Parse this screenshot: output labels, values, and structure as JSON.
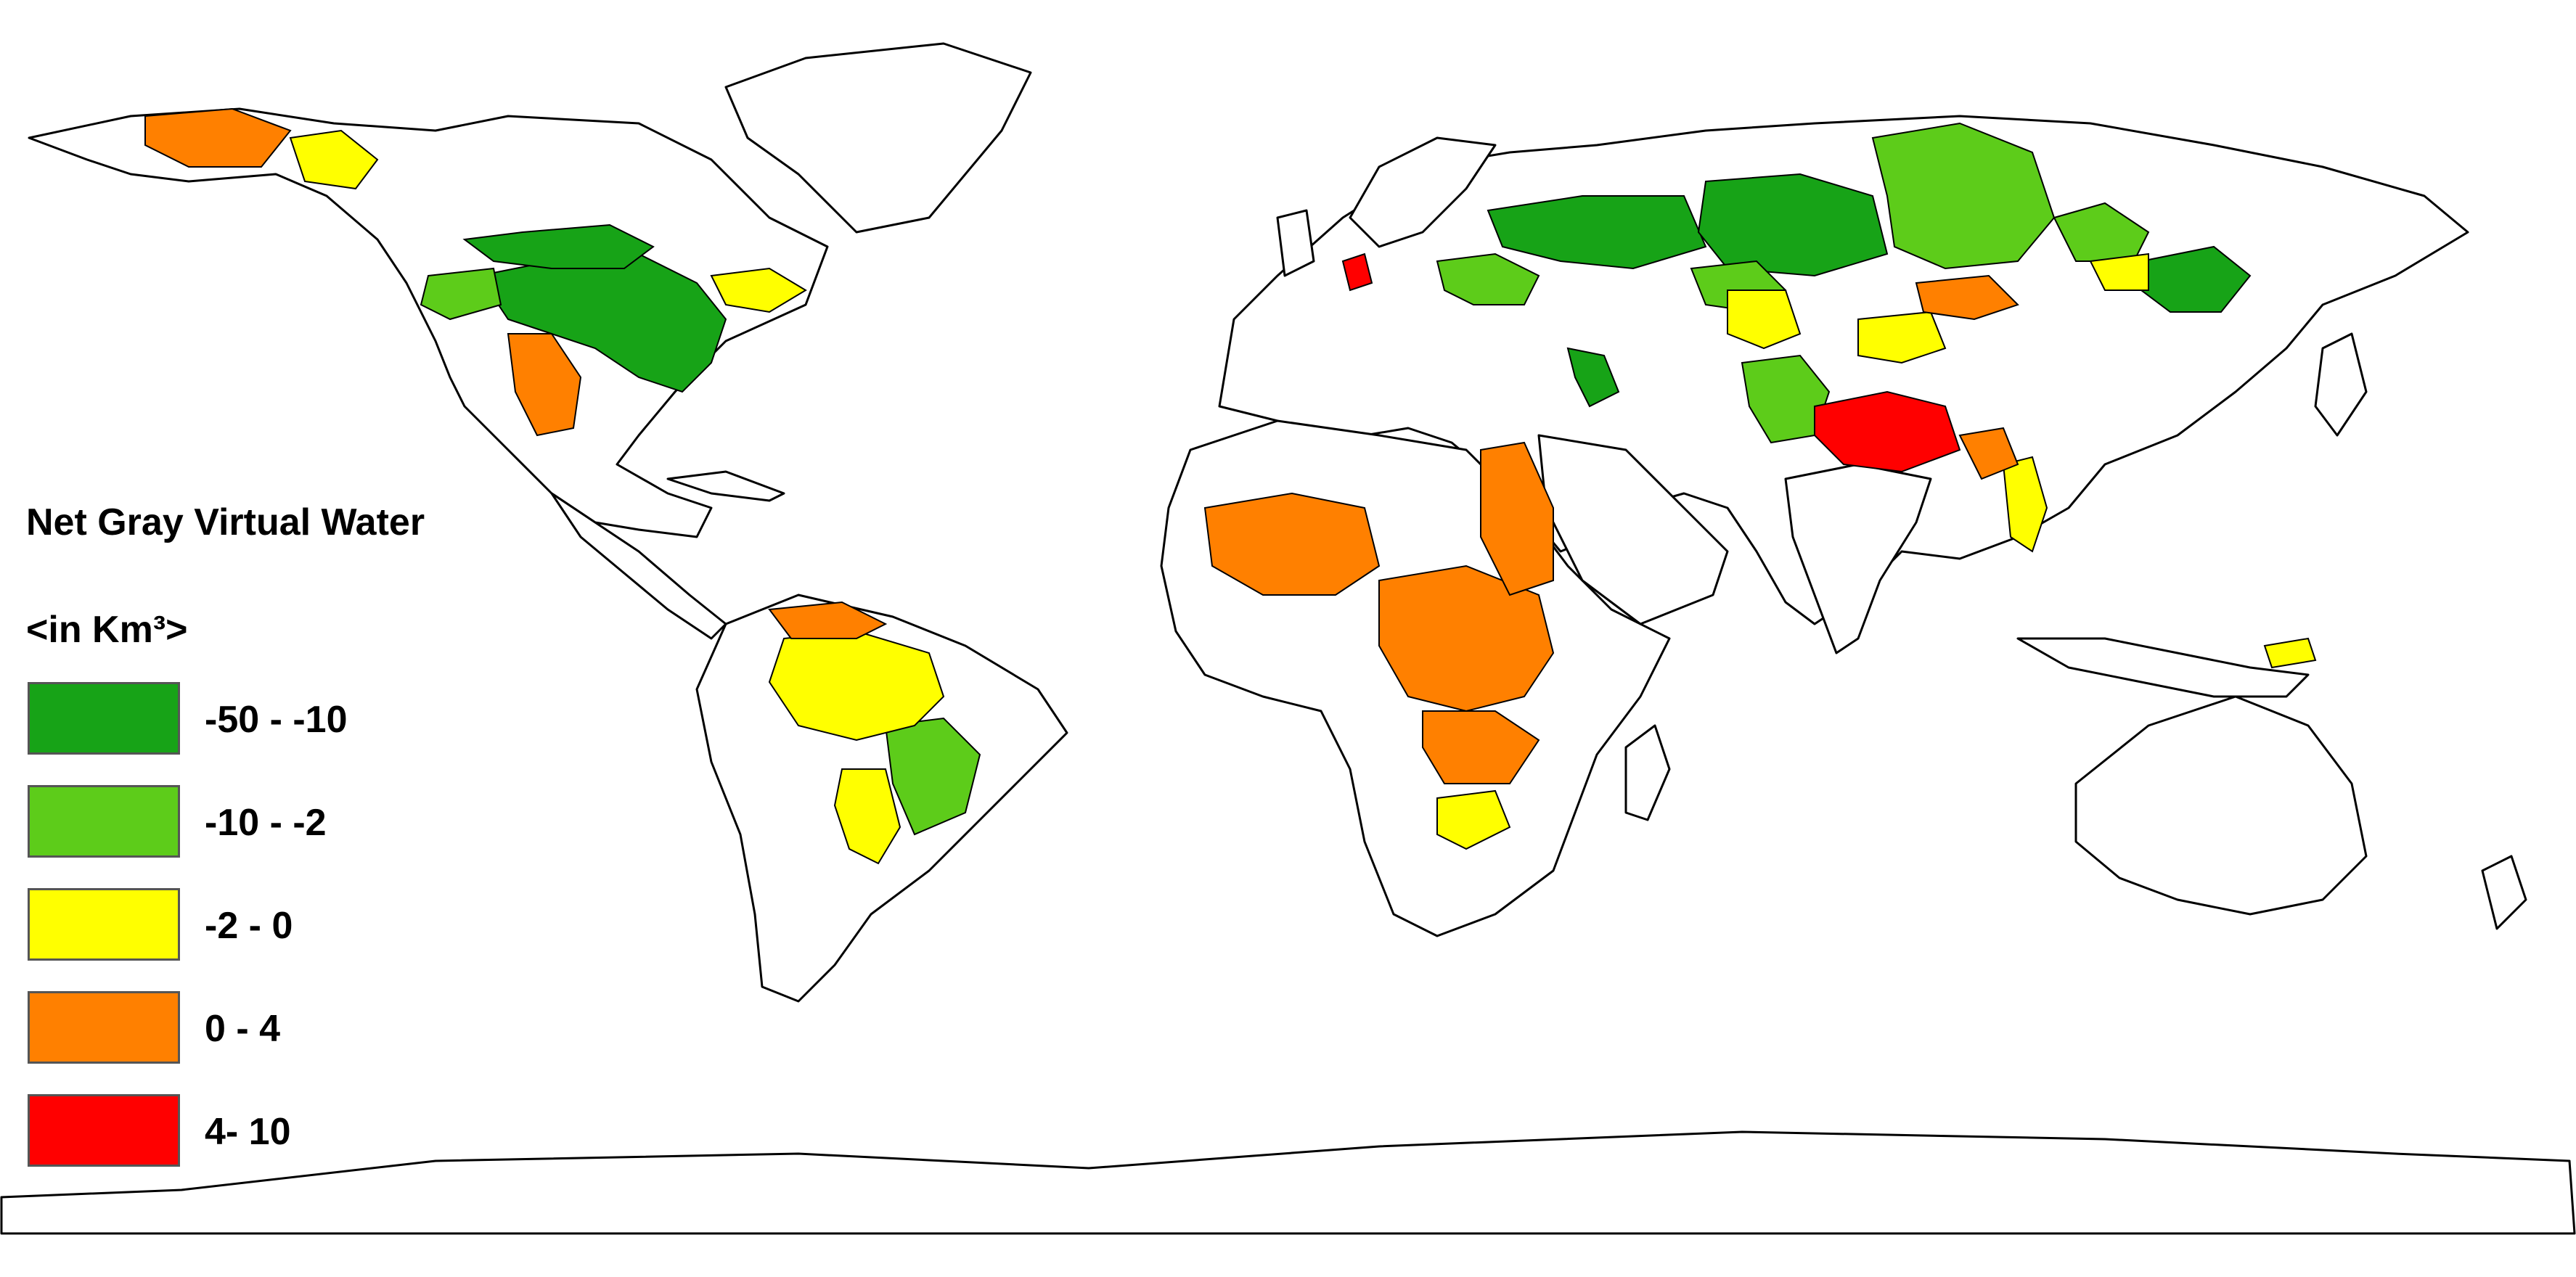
{
  "legend": {
    "title": "Net Gray Virtual Water",
    "unit": "<in Km³>",
    "classes": [
      {
        "label": "-50 - -10",
        "color": "#17a317"
      },
      {
        "label": "-10 - -2",
        "color": "#5dcc1a"
      },
      {
        "label": "-2 - 0",
        "color": "#ffff00"
      },
      {
        "label": "0 - 4",
        "color": "#ff8000"
      },
      {
        "label": "4- 10",
        "color": "#ff0000"
      }
    ]
  },
  "map": {
    "projection": "equirectangular",
    "land_color": "#ffffff",
    "outline_color": "#000000"
  }
}
